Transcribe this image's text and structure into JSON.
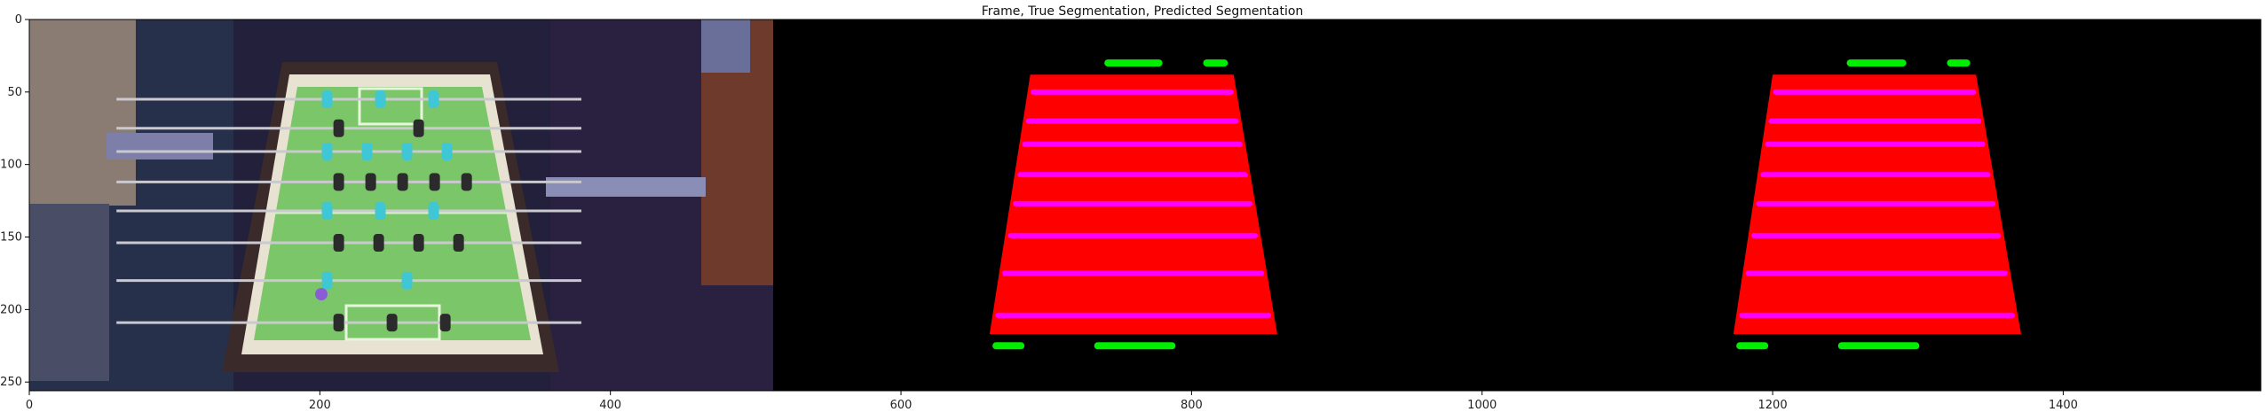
{
  "chart_data": {
    "type": "image",
    "title": "Frame, True Segmentation, Predicted Segmentation",
    "xlabel": "",
    "ylabel": "",
    "xlim": [
      0,
      1536
    ],
    "ylim": [
      256,
      0
    ],
    "x_ticks": [
      0,
      200,
      400,
      600,
      800,
      1000,
      1200,
      1400
    ],
    "y_ticks": [
      0,
      50,
      100,
      150,
      200,
      250
    ],
    "panels": [
      {
        "name": "Frame",
        "x_range": [
          0,
          512
        ],
        "description_colors": {
          "background": "#1c1a30",
          "field": "#7ec86a",
          "frame": "#3a2a2a"
        }
      },
      {
        "name": "True Segmentation",
        "x_range": [
          512,
          1024
        ],
        "playfield": {
          "top_left": [
            689,
            38
          ],
          "top_right": [
            829,
            38
          ],
          "bottom_left": [
            661,
            217
          ],
          "bottom_right": [
            859,
            217
          ]
        },
        "rods_y": [
          50,
          70,
          86,
          107,
          127,
          149,
          175,
          204
        ],
        "goal_bars": [
          {
            "x1": 740,
            "x2": 780,
            "y": 30
          },
          {
            "x1": 808,
            "x2": 825,
            "y": 30
          },
          {
            "x1": 663,
            "x2": 685,
            "y": 225
          },
          {
            "x1": 733,
            "x2": 789,
            "y": 225
          }
        ]
      },
      {
        "name": "Predicted Segmentation",
        "x_range": [
          1024,
          1536
        ],
        "playfield": {
          "top_left": [
            1200,
            38
          ],
          "top_right": [
            1340,
            38
          ],
          "bottom_left": [
            1173,
            217
          ],
          "bottom_right": [
            1371,
            217
          ]
        },
        "rods_y": [
          50,
          70,
          86,
          107,
          127,
          149,
          175,
          204
        ],
        "goal_bars": [
          {
            "x1": 1251,
            "x2": 1292,
            "y": 30
          },
          {
            "x1": 1320,
            "x2": 1336,
            "y": 30
          },
          {
            "x1": 1175,
            "x2": 1197,
            "y": 225
          },
          {
            "x1": 1245,
            "x2": 1301,
            "y": 225
          }
        ]
      }
    ],
    "colors": {
      "playfield": "#ff0000",
      "rods": "#ff00ff",
      "goals": "#00ee00",
      "background": "#000000"
    }
  }
}
